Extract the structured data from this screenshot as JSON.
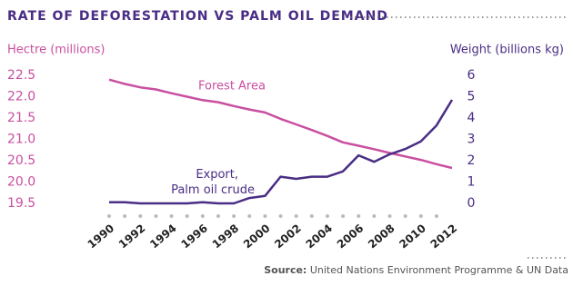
{
  "chart_data": {
    "type": "line",
    "title": "RATE OF DEFORESTATION VS PALM OIL DEMAND",
    "y_label": "Hectre (millions)",
    "y2_label": "Weight (billions kg)",
    "x": [
      1990,
      1991,
      1992,
      1993,
      1994,
      1995,
      1996,
      1997,
      1998,
      1999,
      2000,
      2001,
      2002,
      2003,
      2004,
      2005,
      2006,
      2007,
      2008,
      2009,
      2010,
      2011,
      2012
    ],
    "xlim": [
      1990,
      2012
    ],
    "xticks": [
      1990,
      1992,
      1994,
      1996,
      1998,
      2000,
      2002,
      2004,
      2006,
      2008,
      2010,
      2012
    ],
    "ylim": [
      19.5,
      22.5
    ],
    "yticks": [
      19.5,
      {
        "value": 20,
        "label": "20.0"
      },
      20.5,
      {
        "value": 21,
        "label": "21.0"
      },
      21.5,
      {
        "value": 22,
        "label": "22.0"
      },
      22.5
    ],
    "y2lim": [
      0,
      6
    ],
    "y2ticks": [
      0,
      1,
      2,
      3,
      4,
      5,
      6
    ],
    "series": [
      {
        "name": "Forest Area",
        "color": "#c94fa0",
        "axis": "y",
        "values": [
          22.4,
          22.3,
          22.22,
          22.17,
          22.08,
          22.0,
          21.92,
          21.87,
          21.78,
          21.7,
          21.63,
          21.48,
          21.35,
          21.22,
          21.08,
          20.93,
          20.85,
          20.77,
          20.68,
          20.6,
          20.52,
          20.42,
          20.33
        ]
      },
      {
        "name": [
          "Export,",
          "Palm oil crude"
        ],
        "color": "#4a2d85",
        "axis": "y2",
        "values": [
          0.05,
          0.05,
          0,
          0,
          0,
          0,
          0.05,
          0,
          0,
          0.25,
          0.35,
          1.25,
          1.15,
          1.25,
          1.25,
          1.5,
          2.25,
          1.95,
          2.3,
          2.55,
          2.9,
          3.65,
          4.85
        ]
      }
    ],
    "source_label": "Source:",
    "source_text": "United Nations Environment Programme & UN Data"
  }
}
